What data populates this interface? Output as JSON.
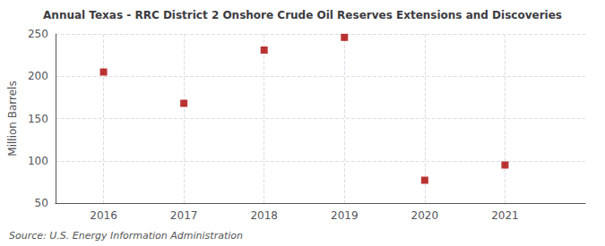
{
  "chart_data": {
    "type": "scatter",
    "title": "Annual Texas - RRC District 2 Onshore Crude Oil Reserves Extensions and Discoveries",
    "ylabel": "Million Barrels",
    "annotation": "Source: U.S. Energy Information Administration",
    "x": [
      2016,
      2017,
      2018,
      2019,
      2020,
      2021
    ],
    "values": [
      205,
      168,
      231,
      246,
      77,
      95
    ],
    "color": "#aa0000",
    "marker": "square",
    "xlim": [
      2015.4,
      2022.0
    ],
    "xticks": [
      2016,
      2017,
      2018,
      2019,
      2020,
      2021
    ],
    "ylim": [
      50,
      250
    ],
    "yticks": [
      50,
      100,
      150,
      200,
      250
    ],
    "grid": true
  }
}
